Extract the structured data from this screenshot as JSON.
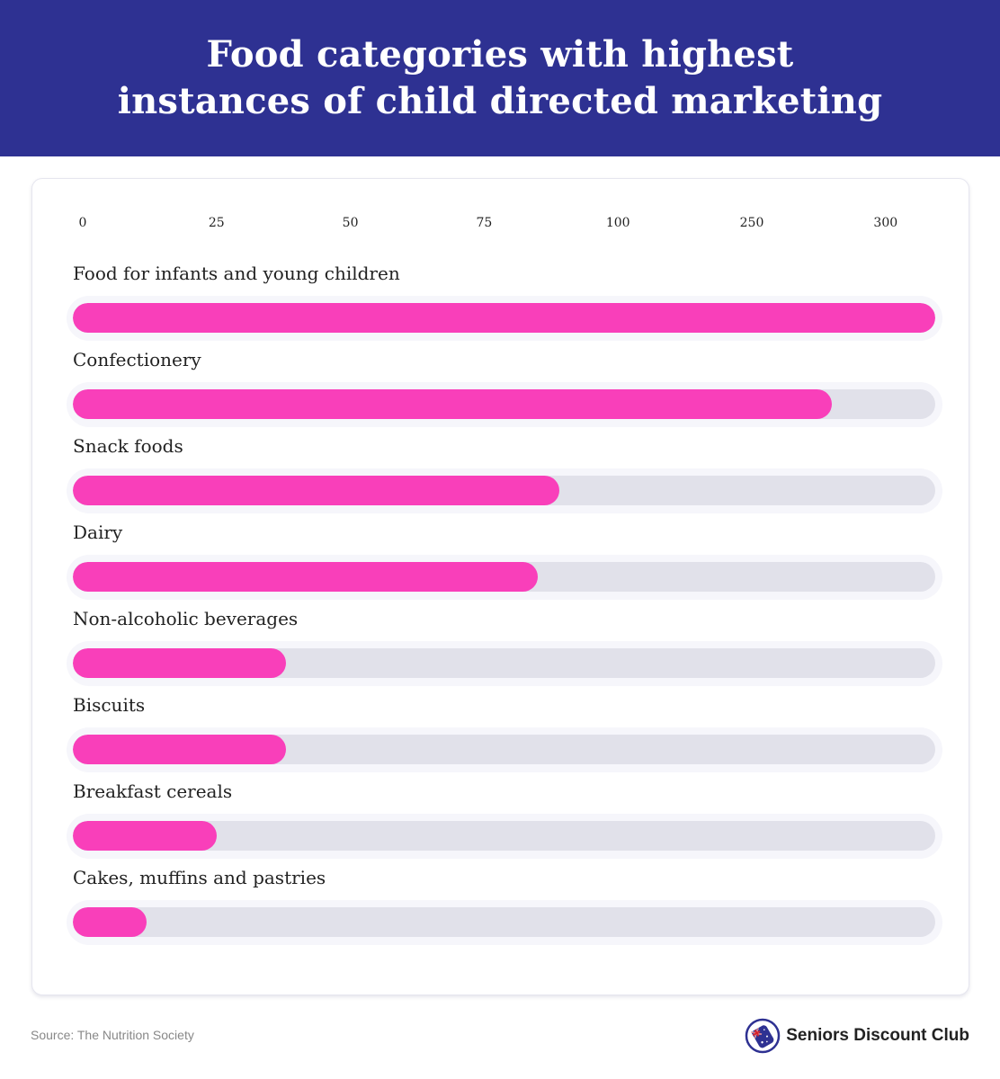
{
  "header": {
    "title": "Food categories with highest instances of child directed marketing"
  },
  "footer": {
    "source": "Source: The Nutrition Society",
    "brand": "Seniors Discount Club",
    "brand_icon": "australia-flag-tag-icon"
  },
  "colors": {
    "header_bg": "#2e3192",
    "bar_fill": "#f93fba",
    "bar_track": "#e1e1ea",
    "text": "#222222"
  },
  "chart_data": {
    "type": "bar",
    "orientation": "horizontal",
    "title": "Food categories with highest instances of child directed marketing",
    "xlabel": "",
    "ylabel": "",
    "x_ticks": [
      0,
      25,
      50,
      75,
      100,
      250,
      300
    ],
    "x_tick_labels": [
      "0",
      "25",
      "50",
      "75",
      "100",
      "250",
      "300"
    ],
    "xlim": [
      0,
      320
    ],
    "grid": false,
    "categories": [
      "Food for infants and young children",
      "Confectionery",
      "Snack foods",
      "Dairy",
      "Non-alcoholic beverages",
      "Biscuits",
      "Breakfast cereals",
      "Cakes, muffins and pastries"
    ],
    "values": [
      320,
      280,
      89,
      85,
      38,
      38,
      25,
      12
    ],
    "source": "Source: The Nutrition Society"
  }
}
